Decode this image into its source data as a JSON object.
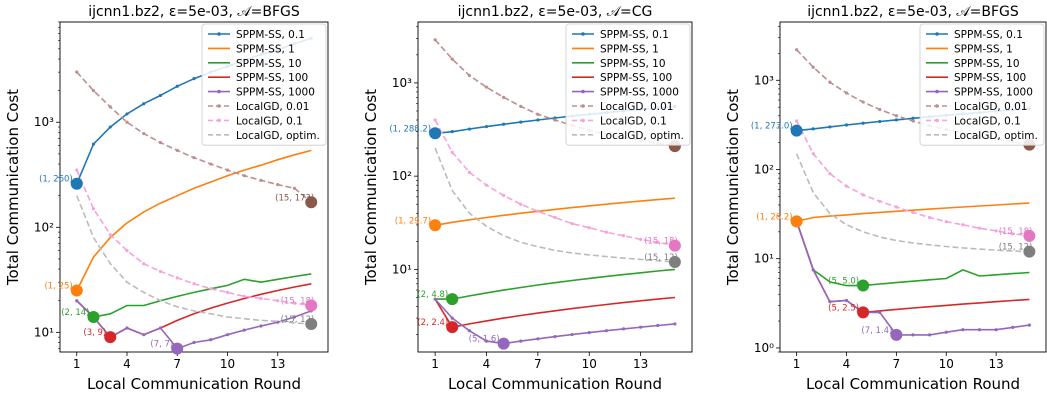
{
  "chart_data": [
    {
      "type": "line",
      "title": "ijcnn1.bz2, ε=5e-03, 𝒜=BFGS",
      "xlabel": "Local Communication Round",
      "ylabel": "Total Communication Cost",
      "yscale": "log",
      "xlim": [
        0,
        16
      ],
      "ylim": [
        6.5,
        9000
      ],
      "xticks": [
        1,
        4,
        7,
        10,
        13
      ],
      "yticks": [
        10,
        100,
        1000
      ],
      "yticklabels": [
        "10¹",
        "10²",
        "10³"
      ],
      "legend_position": "top-right",
      "x": [
        1,
        2,
        3,
        4,
        5,
        6,
        7,
        8,
        9,
        10,
        11,
        12,
        13,
        14,
        15
      ],
      "series": [
        {
          "name": "SPPM-SS, 0.1",
          "color": "#1f77b4",
          "style": "solid-dot",
          "values": [
            260,
            620,
            900,
            1200,
            1500,
            1800,
            2200,
            2600,
            3000,
            3400,
            3900,
            4400,
            4900,
            5600,
            6300
          ]
        },
        {
          "name": "SPPM-SS, 1",
          "color": "#ff7f0e",
          "style": "solid",
          "values": [
            25,
            52,
            80,
            110,
            140,
            170,
            200,
            235,
            270,
            310,
            350,
            390,
            440,
            490,
            540
          ]
        },
        {
          "name": "SPPM-SS, 10",
          "color": "#2ca02c",
          "style": "solid",
          "values": [
            20,
            14,
            15,
            18,
            18,
            20,
            22,
            24,
            26,
            28,
            32,
            30,
            32,
            34,
            36
          ]
        },
        {
          "name": "SPPM-SS, 100",
          "color": "#d62728",
          "style": "solid",
          "values": [
            20,
            14,
            9,
            11,
            9.5,
            11,
            13,
            15,
            17,
            19,
            21,
            23,
            25,
            27,
            29
          ]
        },
        {
          "name": "SPPM-SS, 1000",
          "color": "#9467bd",
          "style": "solid-dot",
          "values": [
            20,
            14,
            9,
            11,
            9.5,
            11,
            7,
            8,
            8.5,
            9.5,
            10.5,
            11.5,
            12.5,
            14,
            16
          ]
        },
        {
          "name": "LocalGD, 0.01",
          "color": "#bc8f8f",
          "style": "dashed-dot",
          "values": [
            3000,
            2000,
            1400,
            1000,
            780,
            640,
            540,
            460,
            400,
            350,
            310,
            280,
            255,
            235,
            173
          ]
        },
        {
          "name": "LocalGD, 0.1",
          "color": "#f5a3dc",
          "style": "dashed-dot",
          "values": [
            350,
            150,
            85,
            60,
            45,
            38,
            33,
            29,
            26,
            24,
            22,
            21,
            20,
            19,
            18
          ]
        },
        {
          "name": "LocalGD, optim.",
          "color": "#bbbbbb",
          "style": "dashed",
          "values": [
            200,
            80,
            45,
            30,
            24,
            20,
            17.5,
            16,
            15,
            14,
            13.5,
            13,
            12.7,
            12.3,
            12
          ]
        }
      ],
      "markers": [
        {
          "x": 1,
          "y": 260,
          "label": "(1, 260)",
          "color": "#1f77b4"
        },
        {
          "x": 1,
          "y": 25,
          "label": "(1, 25)",
          "color": "#ff7f0e"
        },
        {
          "x": 2,
          "y": 14,
          "label": "(2, 14)",
          "color": "#2ca02c"
        },
        {
          "x": 3,
          "y": 9,
          "label": "(3, 9)",
          "color": "#d62728"
        },
        {
          "x": 7,
          "y": 7,
          "label": "(7, 7)",
          "color": "#9467bd"
        },
        {
          "x": 15,
          "y": 173,
          "label": "(15, 173)",
          "color": "#8c564b"
        },
        {
          "x": 15,
          "y": 18,
          "label": "(15, 18)",
          "color": "#e377c2"
        },
        {
          "x": 15,
          "y": 12,
          "label": "(15, 12)",
          "color": "#7f7f7f"
        }
      ]
    },
    {
      "type": "line",
      "title": "ijcnn1.bz2, ε=5e-03, 𝒜=CG",
      "xlabel": "Local Communication Round",
      "ylabel": "Total Communication Cost",
      "yscale": "log",
      "xlim": [
        0,
        16
      ],
      "ylim": [
        1.3,
        4500
      ],
      "xticks": [
        1,
        4,
        7,
        10,
        13
      ],
      "yticks": [
        10,
        100,
        1000
      ],
      "yticklabels": [
        "10¹",
        "10²",
        "10³"
      ],
      "legend_position": "top-right",
      "x": [
        1,
        2,
        3,
        4,
        5,
        6,
        7,
        8,
        9,
        10,
        11,
        12,
        13,
        14,
        15
      ],
      "series": [
        {
          "name": "SPPM-SS, 0.1",
          "color": "#1f77b4",
          "style": "solid-dot",
          "values": [
            288.2,
            300,
            320,
            340,
            360,
            380,
            400,
            420,
            440,
            460,
            480,
            500,
            520,
            540,
            560
          ]
        },
        {
          "name": "SPPM-SS, 1",
          "color": "#ff7f0e",
          "style": "solid",
          "values": [
            29.7,
            32,
            34,
            36,
            38,
            40,
            42,
            44,
            46,
            48,
            50,
            52,
            54,
            56,
            58
          ]
        },
        {
          "name": "SPPM-SS, 10",
          "color": "#2ca02c",
          "style": "solid",
          "values": [
            4.8,
            4.8,
            5.2,
            5.6,
            6,
            6.4,
            6.8,
            7.2,
            7.6,
            8,
            8.4,
            8.8,
            9.2,
            9.6,
            10
          ]
        },
        {
          "name": "SPPM-SS, 100",
          "color": "#d62728",
          "style": "solid",
          "values": [
            4.8,
            2.4,
            2.6,
            2.8,
            3,
            3.2,
            3.4,
            3.6,
            3.8,
            4,
            4.2,
            4.4,
            4.6,
            4.8,
            5
          ]
        },
        {
          "name": "SPPM-SS, 1000",
          "color": "#9467bd",
          "style": "solid-dot",
          "values": [
            4.8,
            3,
            2.2,
            1.7,
            1.6,
            1.7,
            1.8,
            1.9,
            2,
            2.1,
            2.2,
            2.3,
            2.4,
            2.5,
            2.6
          ]
        },
        {
          "name": "LocalGD, 0.01",
          "color": "#bc8f8f",
          "style": "dashed-dot",
          "values": [
            2900,
            1800,
            1200,
            900,
            700,
            560,
            460,
            400,
            350,
            310,
            280,
            260,
            240,
            225,
            210
          ]
        },
        {
          "name": "LocalGD, 0.1",
          "color": "#f5a3dc",
          "style": "dashed-dot",
          "values": [
            400,
            180,
            110,
            80,
            62,
            50,
            42,
            36,
            31,
            28,
            25,
            23,
            21,
            19.5,
            18
          ]
        },
        {
          "name": "LocalGD, optim.",
          "color": "#bbbbbb",
          "style": "dashed",
          "values": [
            200,
            70,
            40,
            29,
            23,
            19.5,
            17.5,
            16,
            15,
            14.3,
            13.7,
            13.2,
            12.8,
            12.4,
            12
          ]
        }
      ],
      "markers": [
        {
          "x": 1,
          "y": 288.2,
          "label": "(1, 288.2)",
          "color": "#1f77b4"
        },
        {
          "x": 1,
          "y": 29.7,
          "label": "(1, 29.7)",
          "color": "#ff7f0e"
        },
        {
          "x": 2,
          "y": 4.8,
          "label": "(2, 4.8)",
          "color": "#2ca02c"
        },
        {
          "x": 2,
          "y": 2.4,
          "label": "(2, 2.4)",
          "color": "#d62728"
        },
        {
          "x": 5,
          "y": 1.6,
          "label": "(5, 1.6)",
          "color": "#9467bd"
        },
        {
          "x": 15,
          "y": 210,
          "label": "",
          "color": "#8c564b"
        },
        {
          "x": 15,
          "y": 18,
          "label": "(15, 18)",
          "color": "#e377c2"
        },
        {
          "x": 15,
          "y": 12,
          "label": "(15, 12)",
          "color": "#7f7f7f"
        }
      ]
    },
    {
      "type": "line",
      "title": "ijcnn1.bz2, ε=5e-03, 𝒜=BFGS",
      "xlabel": "Local Communication Round",
      "ylabel": "Total Communication Cost",
      "yscale": "log",
      "xlim": [
        0,
        16
      ],
      "ylim": [
        0.9,
        4500
      ],
      "xticks": [
        1,
        4,
        7,
        10,
        13
      ],
      "yticks": [
        1,
        10,
        100,
        1000
      ],
      "yticklabels": [
        "10⁰",
        "10¹",
        "10²",
        "10³"
      ],
      "legend_position": "top-right",
      "x": [
        1,
        2,
        3,
        4,
        5,
        6,
        7,
        8,
        9,
        10,
        11,
        12,
        13,
        14,
        15
      ],
      "series": [
        {
          "name": "SPPM-SS, 0.1",
          "color": "#1f77b4",
          "style": "solid-dot",
          "values": [
            273,
            285,
            300,
            315,
            330,
            345,
            360,
            375,
            390,
            405,
            420,
            435,
            450,
            465,
            480
          ]
        },
        {
          "name": "SPPM-SS, 1",
          "color": "#ff7f0e",
          "style": "solid",
          "values": [
            26.2,
            29,
            30,
            31,
            32,
            33,
            34,
            35,
            36,
            37,
            38,
            39,
            40,
            41,
            42
          ]
        },
        {
          "name": "SPPM-SS, 10",
          "color": "#2ca02c",
          "style": "solid",
          "values": [
            26.2,
            7.5,
            5.5,
            5,
            5,
            5.2,
            5.4,
            5.6,
            5.8,
            6,
            7.5,
            6.4,
            6.6,
            6.8,
            7
          ]
        },
        {
          "name": "SPPM-SS, 100",
          "color": "#d62728",
          "style": "solid",
          "values": [
            26.2,
            7.5,
            3.3,
            3.4,
            2.5,
            2.6,
            2.7,
            2.8,
            2.9,
            3,
            3.1,
            3.2,
            3.3,
            3.4,
            3.5
          ]
        },
        {
          "name": "SPPM-SS, 1000",
          "color": "#9467bd",
          "style": "solid-dot",
          "values": [
            26.2,
            7.5,
            3.3,
            3.4,
            2.5,
            2.5,
            1.4,
            1.4,
            1.4,
            1.5,
            1.6,
            1.6,
            1.6,
            1.7,
            1.8
          ]
        },
        {
          "name": "LocalGD, 0.01",
          "color": "#bc8f8f",
          "style": "dashed-dot",
          "values": [
            2200,
            1400,
            950,
            720,
            570,
            470,
            400,
            350,
            310,
            280,
            255,
            235,
            220,
            205,
            190
          ]
        },
        {
          "name": "LocalGD, 0.1",
          "color": "#f5a3dc",
          "style": "dashed-dot",
          "values": [
            350,
            150,
            90,
            65,
            52,
            44,
            38,
            33,
            29,
            26,
            24,
            22,
            20.5,
            19,
            18
          ]
        },
        {
          "name": "LocalGD, optim.",
          "color": "#bbbbbb",
          "style": "dashed",
          "values": [
            150,
            55,
            32,
            24,
            20,
            17.5,
            16,
            15,
            14.3,
            13.7,
            13.2,
            12.8,
            12.5,
            12.2,
            12
          ]
        }
      ],
      "markers": [
        {
          "x": 1,
          "y": 273,
          "label": "(1, 273.0)",
          "color": "#1f77b4"
        },
        {
          "x": 1,
          "y": 26.2,
          "label": "(1, 26.2)",
          "color": "#ff7f0e"
        },
        {
          "x": 5,
          "y": 5,
          "label": "(5, 5.0)",
          "color": "#2ca02c"
        },
        {
          "x": 5,
          "y": 2.5,
          "label": "(5, 2.5)",
          "color": "#d62728"
        },
        {
          "x": 7,
          "y": 1.4,
          "label": "(7, 1.4)",
          "color": "#9467bd"
        },
        {
          "x": 15,
          "y": 190,
          "label": "",
          "color": "#8c564b"
        },
        {
          "x": 15,
          "y": 18,
          "label": "(15, 18)",
          "color": "#e377c2"
        },
        {
          "x": 15,
          "y": 12,
          "label": "(15, 12)",
          "color": "#7f7f7f"
        }
      ]
    }
  ]
}
